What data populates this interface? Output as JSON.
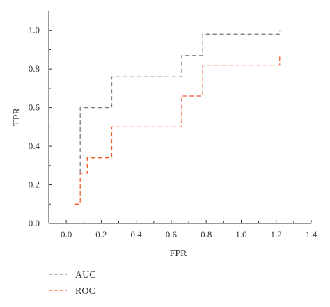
{
  "chart_data": {
    "type": "line",
    "step": true,
    "title": "",
    "xlabel": "FPR",
    "ylabel": "TPR",
    "xlim": [
      -0.1,
      1.4
    ],
    "ylim": [
      0.0,
      1.1
    ],
    "x_ticks": [
      0.0,
      0.2,
      0.4,
      0.6,
      0.8,
      1.0,
      1.2,
      1.4
    ],
    "x_tick_labels": [
      "0.0",
      "0.2",
      "0.4",
      "0.6",
      "0.8",
      "1.0",
      "1.2",
      "1.4"
    ],
    "y_ticks": [
      0.0,
      0.2,
      0.4,
      0.6,
      0.8,
      1.0
    ],
    "y_tick_labels": [
      "0.0",
      "0.2",
      "0.4",
      "0.6",
      "0.8",
      "1.0"
    ],
    "grid": false,
    "legend_position": "bottom-left, below the plot",
    "series": [
      {
        "name": "AUC",
        "color": "#7f7f7f",
        "line_style": "dashed",
        "points": [
          [
            0.08,
            0.26
          ],
          [
            0.08,
            0.6
          ],
          [
            0.26,
            0.6
          ],
          [
            0.26,
            0.76
          ],
          [
            0.66,
            0.76
          ],
          [
            0.66,
            0.87
          ],
          [
            0.78,
            0.87
          ],
          [
            0.78,
            0.98
          ],
          [
            1.22,
            0.98
          ],
          [
            1.22,
            1.0
          ]
        ]
      },
      {
        "name": "ROC",
        "color": "#f05a28",
        "line_style": "dashed",
        "points": [
          [
            0.05,
            0.1
          ],
          [
            0.08,
            0.1
          ],
          [
            0.08,
            0.26
          ],
          [
            0.12,
            0.26
          ],
          [
            0.12,
            0.34
          ],
          [
            0.26,
            0.34
          ],
          [
            0.26,
            0.5
          ],
          [
            0.66,
            0.5
          ],
          [
            0.66,
            0.66
          ],
          [
            0.78,
            0.66
          ],
          [
            0.78,
            0.82
          ],
          [
            1.22,
            0.82
          ],
          [
            1.22,
            0.87
          ]
        ]
      }
    ]
  }
}
